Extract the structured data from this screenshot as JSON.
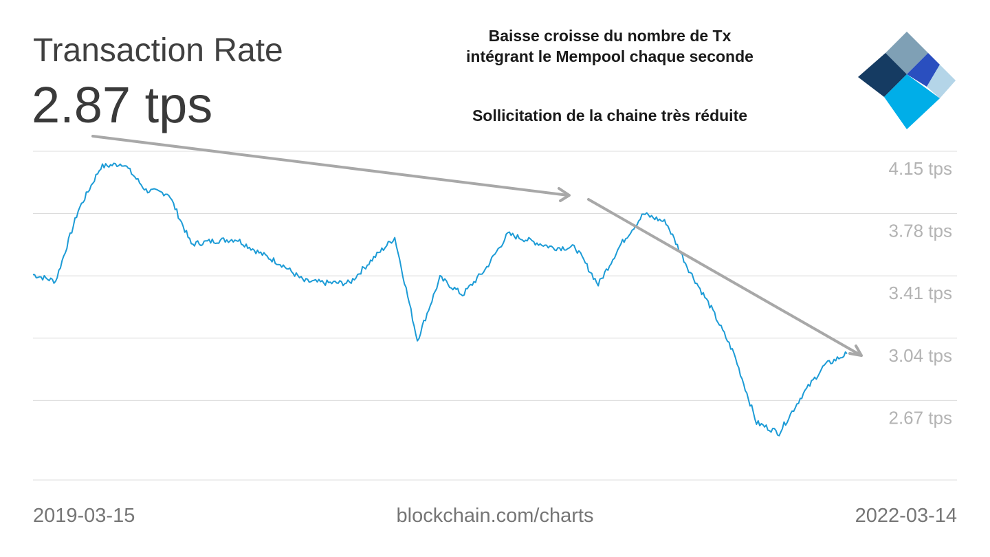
{
  "header": {
    "title": "Transaction Rate",
    "current_value": "2.87 tps"
  },
  "annotations": {
    "line1": "Baisse croisse du nombre de Tx",
    "line2": "intégrant le Mempool chaque seconde",
    "line3": "Sollicitation de la chaine très réduite"
  },
  "footer": {
    "start_date": "2019-03-15",
    "source": "blockchain.com/charts",
    "end_date": "2022-03-14"
  },
  "colors": {
    "line": "#1c9bd6",
    "grid": "#dcdcdc",
    "arrow": "#a8a8a8",
    "logo_dark": "#153b62",
    "logo_gray": "#7fa0b5",
    "logo_blue": "#2a4fbf",
    "logo_cyan": "#00aee8",
    "logo_light": "#b4d5e8"
  },
  "logo": {
    "icon": "blockchain-logo-icon"
  },
  "chart_data": {
    "type": "line",
    "title": "Transaction Rate",
    "x": [
      "2019-03",
      "2019-04",
      "2019-05",
      "2019-06",
      "2019-07",
      "2019-08",
      "2019-09",
      "2019-10",
      "2019-11",
      "2019-12",
      "2020-01",
      "2020-02",
      "2020-03",
      "2020-04",
      "2020-05",
      "2020-06",
      "2020-07",
      "2020-08",
      "2020-09",
      "2020-10",
      "2020-11",
      "2020-12",
      "2021-01",
      "2021-02",
      "2021-03",
      "2021-04",
      "2021-05",
      "2021-06",
      "2021-07",
      "2021-08",
      "2021-09",
      "2021-10",
      "2021-11",
      "2021-12",
      "2022-01",
      "2022-02",
      "2022-03"
    ],
    "values": [
      3.52,
      3.48,
      3.9,
      4.16,
      4.18,
      4.02,
      4.0,
      3.7,
      3.72,
      3.73,
      3.65,
      3.58,
      3.48,
      3.47,
      3.47,
      3.61,
      3.74,
      3.13,
      3.5,
      3.4,
      3.55,
      3.76,
      3.72,
      3.68,
      3.68,
      3.46,
      3.7,
      3.88,
      3.83,
      3.55,
      3.32,
      3.05,
      2.64,
      2.58,
      2.8,
      2.98,
      3.05
    ],
    "y_ticks": [
      "4.15 tps",
      "3.78 tps",
      "3.41 tps",
      "3.04 tps",
      "2.67 tps"
    ],
    "ylim": [
      2.3,
      4.26
    ],
    "grid": true,
    "legend": "none"
  }
}
